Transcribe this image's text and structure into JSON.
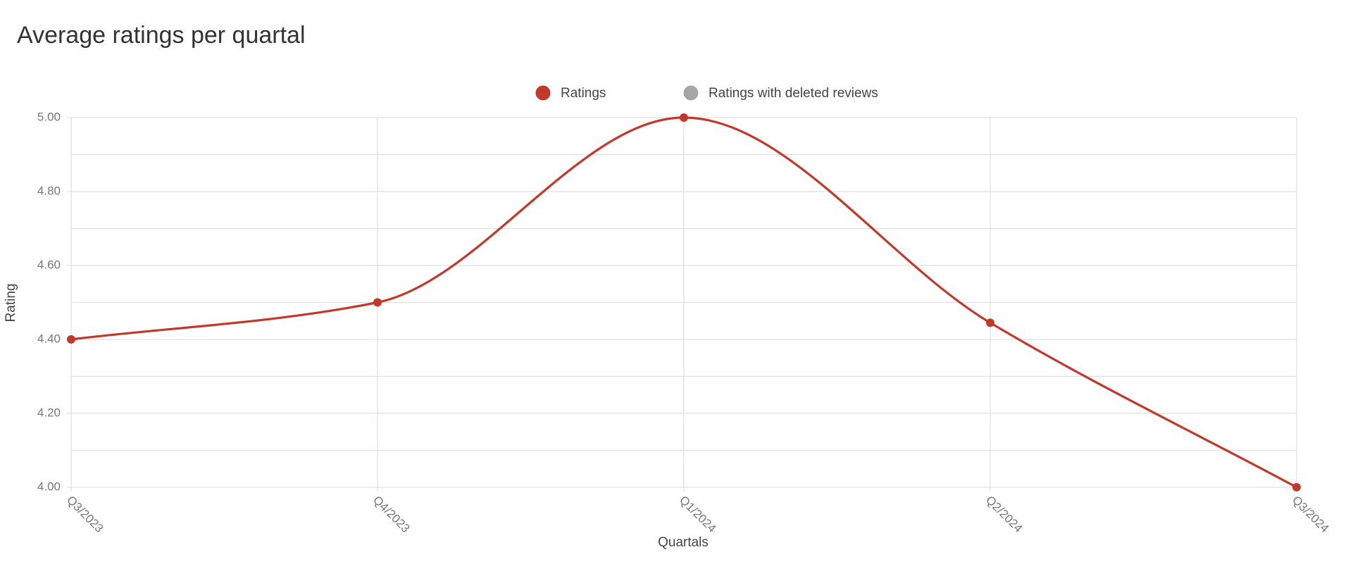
{
  "chart_data": {
    "type": "line",
    "title": "Average ratings per quartal",
    "x_label": "Quartals",
    "y_label": "Rating",
    "categories": [
      "Q3/2023",
      "Q4/2023",
      "Q1/2024",
      "Q2/2024",
      "Q3/2024"
    ],
    "series": [
      {
        "name": "Ratings",
        "color": "#c0392b",
        "values": [
          4.4,
          4.5,
          5.0,
          4.445,
          4.0
        ]
      },
      {
        "name": "Ratings with deleted reviews",
        "color": "#a6a6a6",
        "hidden": true
      }
    ],
    "ylim": [
      4.0,
      5.0
    ],
    "yticks": [
      {
        "value": 4.0,
        "label": "4.00"
      },
      {
        "value": 4.2,
        "label": "4.20"
      },
      {
        "value": 4.4,
        "label": "4.40"
      },
      {
        "value": 4.6,
        "label": "4.60"
      },
      {
        "value": 4.8,
        "label": "4.80"
      },
      {
        "value": 5.0,
        "label": "5.00"
      }
    ],
    "grid": true
  }
}
